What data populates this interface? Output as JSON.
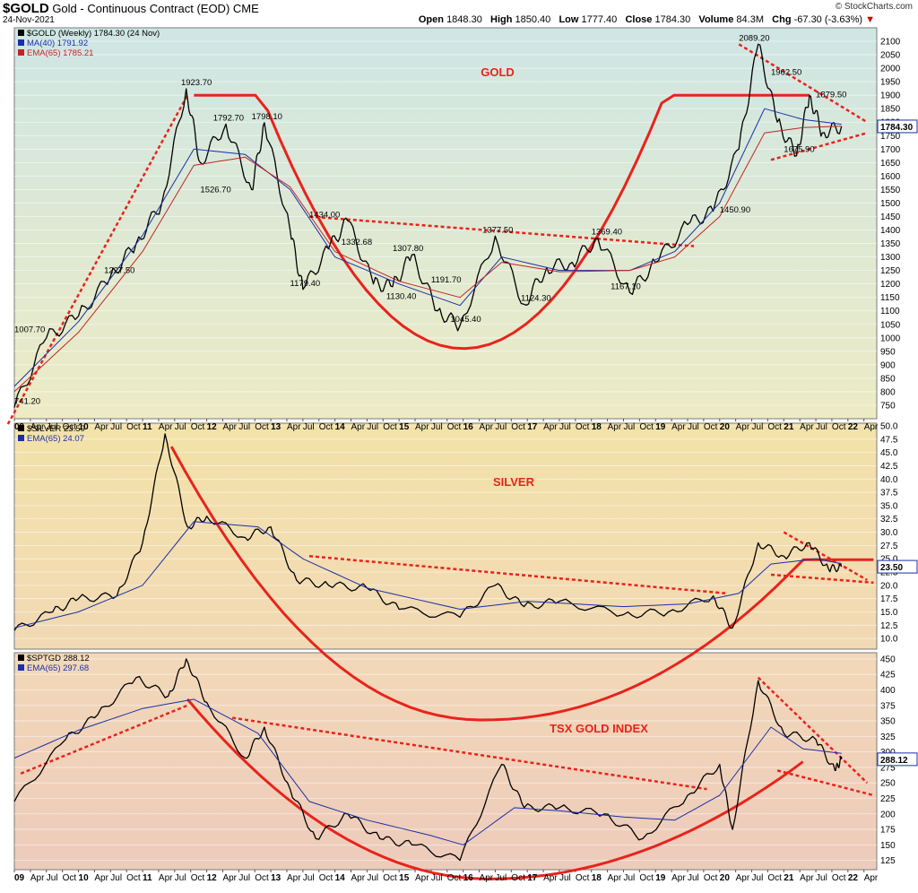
{
  "header": {
    "symbol": "$GOLD",
    "name": "Gold - Continuous Contract (EOD) CME",
    "date": "24-Nov-2021",
    "brand": "© StockCharts.com",
    "open_label": "Open",
    "open": "1848.30",
    "high_label": "High",
    "high": "1850.40",
    "low_label": "Low",
    "low": "1777.40",
    "close_label": "Close",
    "close": "1784.30",
    "volume_label": "Volume",
    "volume": "84.3M",
    "chg_label": "Chg",
    "chg": "-67.30 (-3.63%)",
    "chg_arrow": "▼"
  },
  "chart_data": [
    {
      "type": "line",
      "panel": "gold",
      "title": "GOLD",
      "legend": [
        "$GOLD (Weekly) 1784.30 (24 Nov)",
        "MA(40) 1791.92",
        "EMA(65) 1785.21"
      ],
      "ylim": [
        700,
        2150
      ],
      "yticks": [
        750,
        800,
        850,
        900,
        950,
        1000,
        1050,
        1100,
        1150,
        1200,
        1250,
        1300,
        1350,
        1400,
        1450,
        1500,
        1550,
        1600,
        1650,
        1700,
        1750,
        1800,
        1850,
        1900,
        1950,
        2000,
        2050,
        2100
      ],
      "last_value": "1784.30",
      "series": [
        {
          "color": "#000000",
          "x": [
            2009.0,
            2009.5,
            2010.0,
            2010.5,
            2010.9,
            2011.3,
            2011.68,
            2011.9,
            2012.3,
            2012.7,
            2012.9,
            2013.3,
            2013.5,
            2013.9,
            2014.2,
            2014.6,
            2014.9,
            2015.2,
            2015.6,
            2015.95,
            2016.5,
            2016.95,
            2017.3,
            2017.7,
            2018.1,
            2018.6,
            2019.0,
            2019.5,
            2019.9,
            2020.3,
            2020.6,
            2020.9,
            2021.2,
            2021.4,
            2021.6,
            2021.9
          ],
          "y": [
            741.2,
            1000,
            1080,
            1227.5,
            1350,
            1500,
            1923.7,
            1650,
            1792.7,
            1550,
            1798.1,
            1400,
            1179.4,
            1330,
            1434,
            1200,
            1190,
            1307.8,
            1100,
            1045.4,
            1377.5,
            1124.3,
            1260,
            1280,
            1369.4,
            1167.1,
            1280,
            1420,
            1470,
            1700,
            2089.2,
            1800,
            1675.9,
            1900,
            1760,
            1784.3
          ]
        },
        {
          "color": "#1a2fa8",
          "x": [
            2009.0,
            2010.0,
            2011.0,
            2011.8,
            2012.6,
            2013.3,
            2014.0,
            2015.0,
            2015.95,
            2016.6,
            2017.5,
            2018.6,
            2019.3,
            2020.0,
            2020.7,
            2021.3,
            2021.9
          ],
          "y": [
            820,
            1060,
            1380,
            1700,
            1680,
            1550,
            1300,
            1200,
            1120,
            1300,
            1250,
            1250,
            1320,
            1500,
            1850,
            1810,
            1792
          ]
        },
        {
          "color": "#c42323",
          "x": [
            2009.0,
            2010.0,
            2011.0,
            2011.8,
            2012.6,
            2013.3,
            2014.0,
            2015.0,
            2015.95,
            2016.6,
            2017.5,
            2018.6,
            2019.3,
            2020.0,
            2020.7,
            2021.3,
            2021.9
          ],
          "y": [
            800,
            1020,
            1320,
            1640,
            1670,
            1560,
            1320,
            1210,
            1150,
            1280,
            1245,
            1250,
            1300,
            1450,
            1760,
            1780,
            1785
          ]
        }
      ],
      "annotations": [
        "741.20",
        "1007.70",
        "1227.50",
        "1923.70",
        "1526.70",
        "1792.70",
        "1798.10",
        "1179.40",
        "1434.00",
        "1332.68",
        "1307.80",
        "1130.40",
        "1191.70",
        "1045.40",
        "1377.50",
        "1124.30",
        "1369.40",
        "1167.10",
        "1450.90",
        "2089.20",
        "1962.50",
        "1879.50",
        "1675.90"
      ]
    },
    {
      "type": "line",
      "panel": "silver",
      "title": "SILVER",
      "legend": [
        "$SILVER 23.50",
        "EMA(65) 24.07"
      ],
      "ylim": [
        8,
        50.5
      ],
      "yticks": [
        10.0,
        12.5,
        15.0,
        17.5,
        20.0,
        22.5,
        25.0,
        27.5,
        30.0,
        32.5,
        35.0,
        37.5,
        40.0,
        42.5,
        45.0,
        47.5,
        50.0
      ],
      "last_value": "23.50",
      "series": [
        {
          "color": "#000000",
          "x": [
            2009.0,
            2009.6,
            2010.0,
            2010.6,
            2011.0,
            2011.35,
            2011.7,
            2012.0,
            2012.6,
            2013.0,
            2013.4,
            2013.9,
            2014.5,
            2015.0,
            2015.95,
            2016.5,
            2016.95,
            2017.5,
            2018.5,
            2019.2,
            2019.9,
            2020.2,
            2020.6,
            2021.0,
            2021.4,
            2021.7,
            2021.9
          ],
          "y": [
            11.5,
            15,
            17.5,
            18,
            28,
            48.5,
            31,
            33,
            29,
            31,
            21,
            20,
            19.5,
            15.5,
            14,
            20,
            16,
            17,
            14.5,
            15,
            18,
            12,
            28,
            25.5,
            28,
            23,
            23.5
          ]
        },
        {
          "color": "#1a2fa8",
          "x": [
            2009.0,
            2010.0,
            2011.0,
            2011.8,
            2012.8,
            2013.5,
            2014.5,
            2015.95,
            2017.0,
            2018.5,
            2019.5,
            2020.3,
            2020.8,
            2021.5,
            2021.9
          ],
          "y": [
            12,
            15,
            20,
            32,
            31,
            25,
            19.5,
            15.5,
            17,
            16,
            16.5,
            18.5,
            24,
            25,
            24.07
          ]
        }
      ]
    },
    {
      "type": "line",
      "panel": "tsx",
      "title": "TSX GOLD INDEX",
      "legend": [
        "$SPTGD 288.12",
        "EMA(65) 297.68"
      ],
      "ylim": [
        110,
        460
      ],
      "yticks": [
        125,
        150,
        175,
        200,
        225,
        250,
        275,
        300,
        325,
        350,
        375,
        400,
        425,
        450
      ],
      "last_value": "288.12",
      "series": [
        {
          "color": "#000000",
          "x": [
            2009.0,
            2009.8,
            2010.3,
            2010.9,
            2011.4,
            2011.68,
            2012.0,
            2012.6,
            2012.9,
            2013.3,
            2013.7,
            2014.2,
            2014.7,
            2015.2,
            2015.95,
            2016.6,
            2016.95,
            2017.5,
            2018.2,
            2018.8,
            2019.5,
            2020.0,
            2020.2,
            2020.6,
            2021.0,
            2021.5,
            2021.8,
            2021.9
          ],
          "y": [
            220,
            320,
            360,
            420,
            390,
            450,
            380,
            290,
            340,
            240,
            160,
            200,
            160,
            150,
            125,
            280,
            210,
            210,
            200,
            160,
            230,
            280,
            175,
            415,
            330,
            320,
            270,
            288.12
          ]
        },
        {
          "color": "#1a2fa8",
          "x": [
            2009.0,
            2010.0,
            2011.0,
            2011.8,
            2012.8,
            2013.6,
            2014.5,
            2015.5,
            2016.0,
            2016.8,
            2017.5,
            2018.5,
            2019.3,
            2020.0,
            2020.8,
            2021.3,
            2021.9
          ],
          "y": [
            290,
            335,
            370,
            385,
            330,
            220,
            190,
            165,
            150,
            210,
            205,
            195,
            190,
            230,
            340,
            305,
            297.68
          ]
        }
      ]
    }
  ],
  "xaxis": {
    "labels": [
      "09",
      "Apr",
      "Jul",
      "Oct",
      "10",
      "Apr",
      "Jul",
      "Oct",
      "11",
      "Apr",
      "Jul",
      "Oct",
      "12",
      "Apr",
      "Jul",
      "Oct",
      "13",
      "Apr",
      "Jul",
      "Oct",
      "14",
      "Apr",
      "Jul",
      "Oct",
      "15",
      "Apr",
      "Jul",
      "Oct",
      "16",
      "Apr",
      "Jul",
      "Oct",
      "17",
      "Apr",
      "Jul",
      "Oct",
      "18",
      "Apr",
      "Jul",
      "Oct",
      "19",
      "Apr",
      "Jul",
      "Oct",
      "20",
      "Apr",
      "Jul",
      "Oct",
      "21",
      "Apr",
      "Jul",
      "Oct",
      "22",
      "Apr"
    ]
  }
}
